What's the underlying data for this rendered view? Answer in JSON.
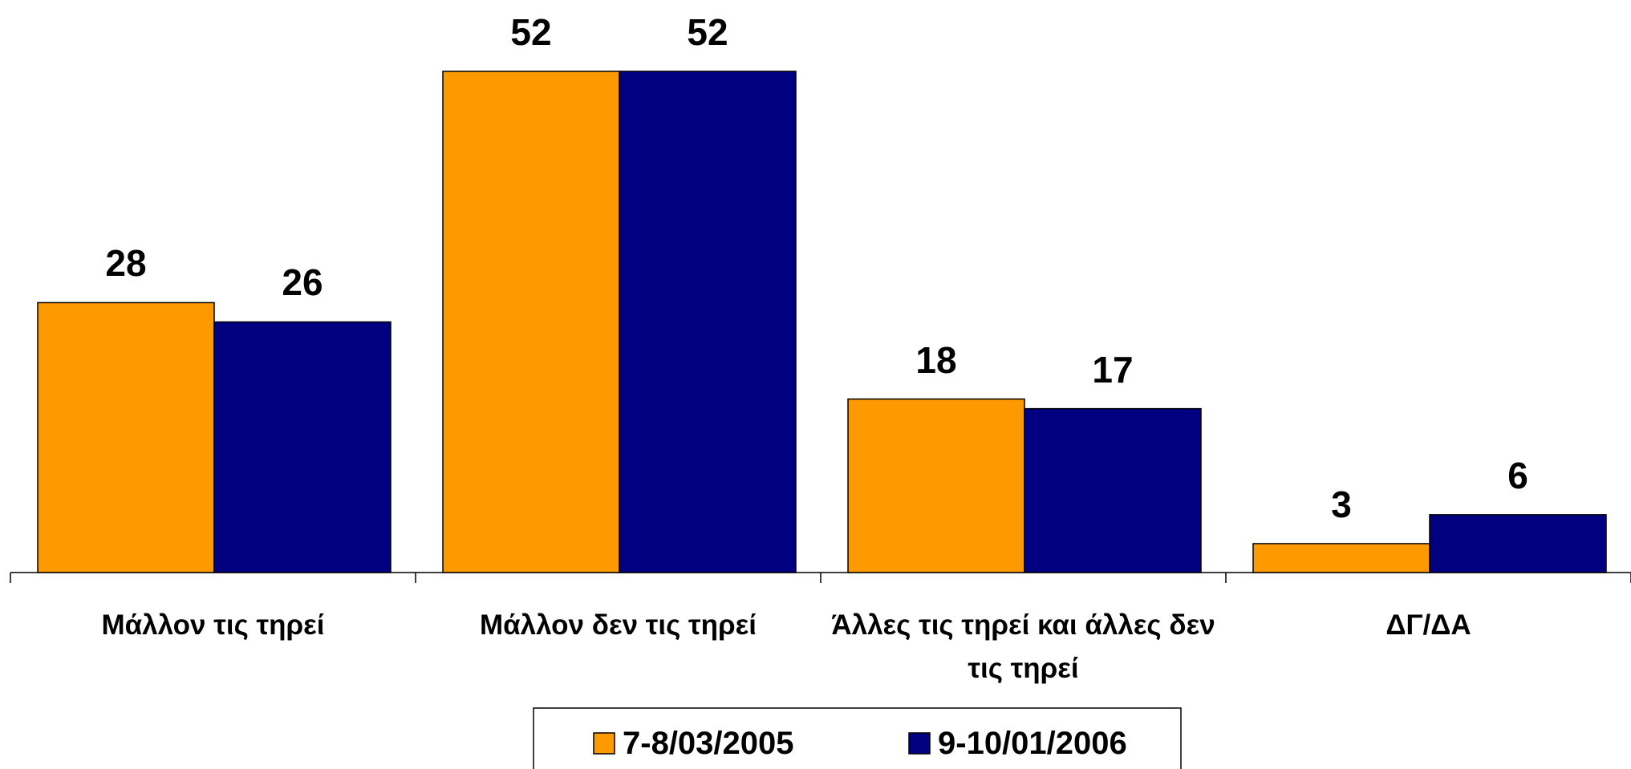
{
  "chart_data": {
    "type": "bar",
    "categories": [
      "Μάλλον τις τηρεί",
      "Μάλλον δεν τις τηρεί",
      "Άλλες τις τηρεί και άλλες δεν τις τηρεί",
      "ΔΓ/ΔΑ"
    ],
    "series": [
      {
        "name": "7-8/03/2005",
        "color": "#ff9900",
        "values": [
          28,
          52,
          18,
          3
        ]
      },
      {
        "name": "9-10/01/2006",
        "color": "#000080",
        "values": [
          26,
          52,
          17,
          6
        ]
      }
    ],
    "legend": "bottom"
  }
}
